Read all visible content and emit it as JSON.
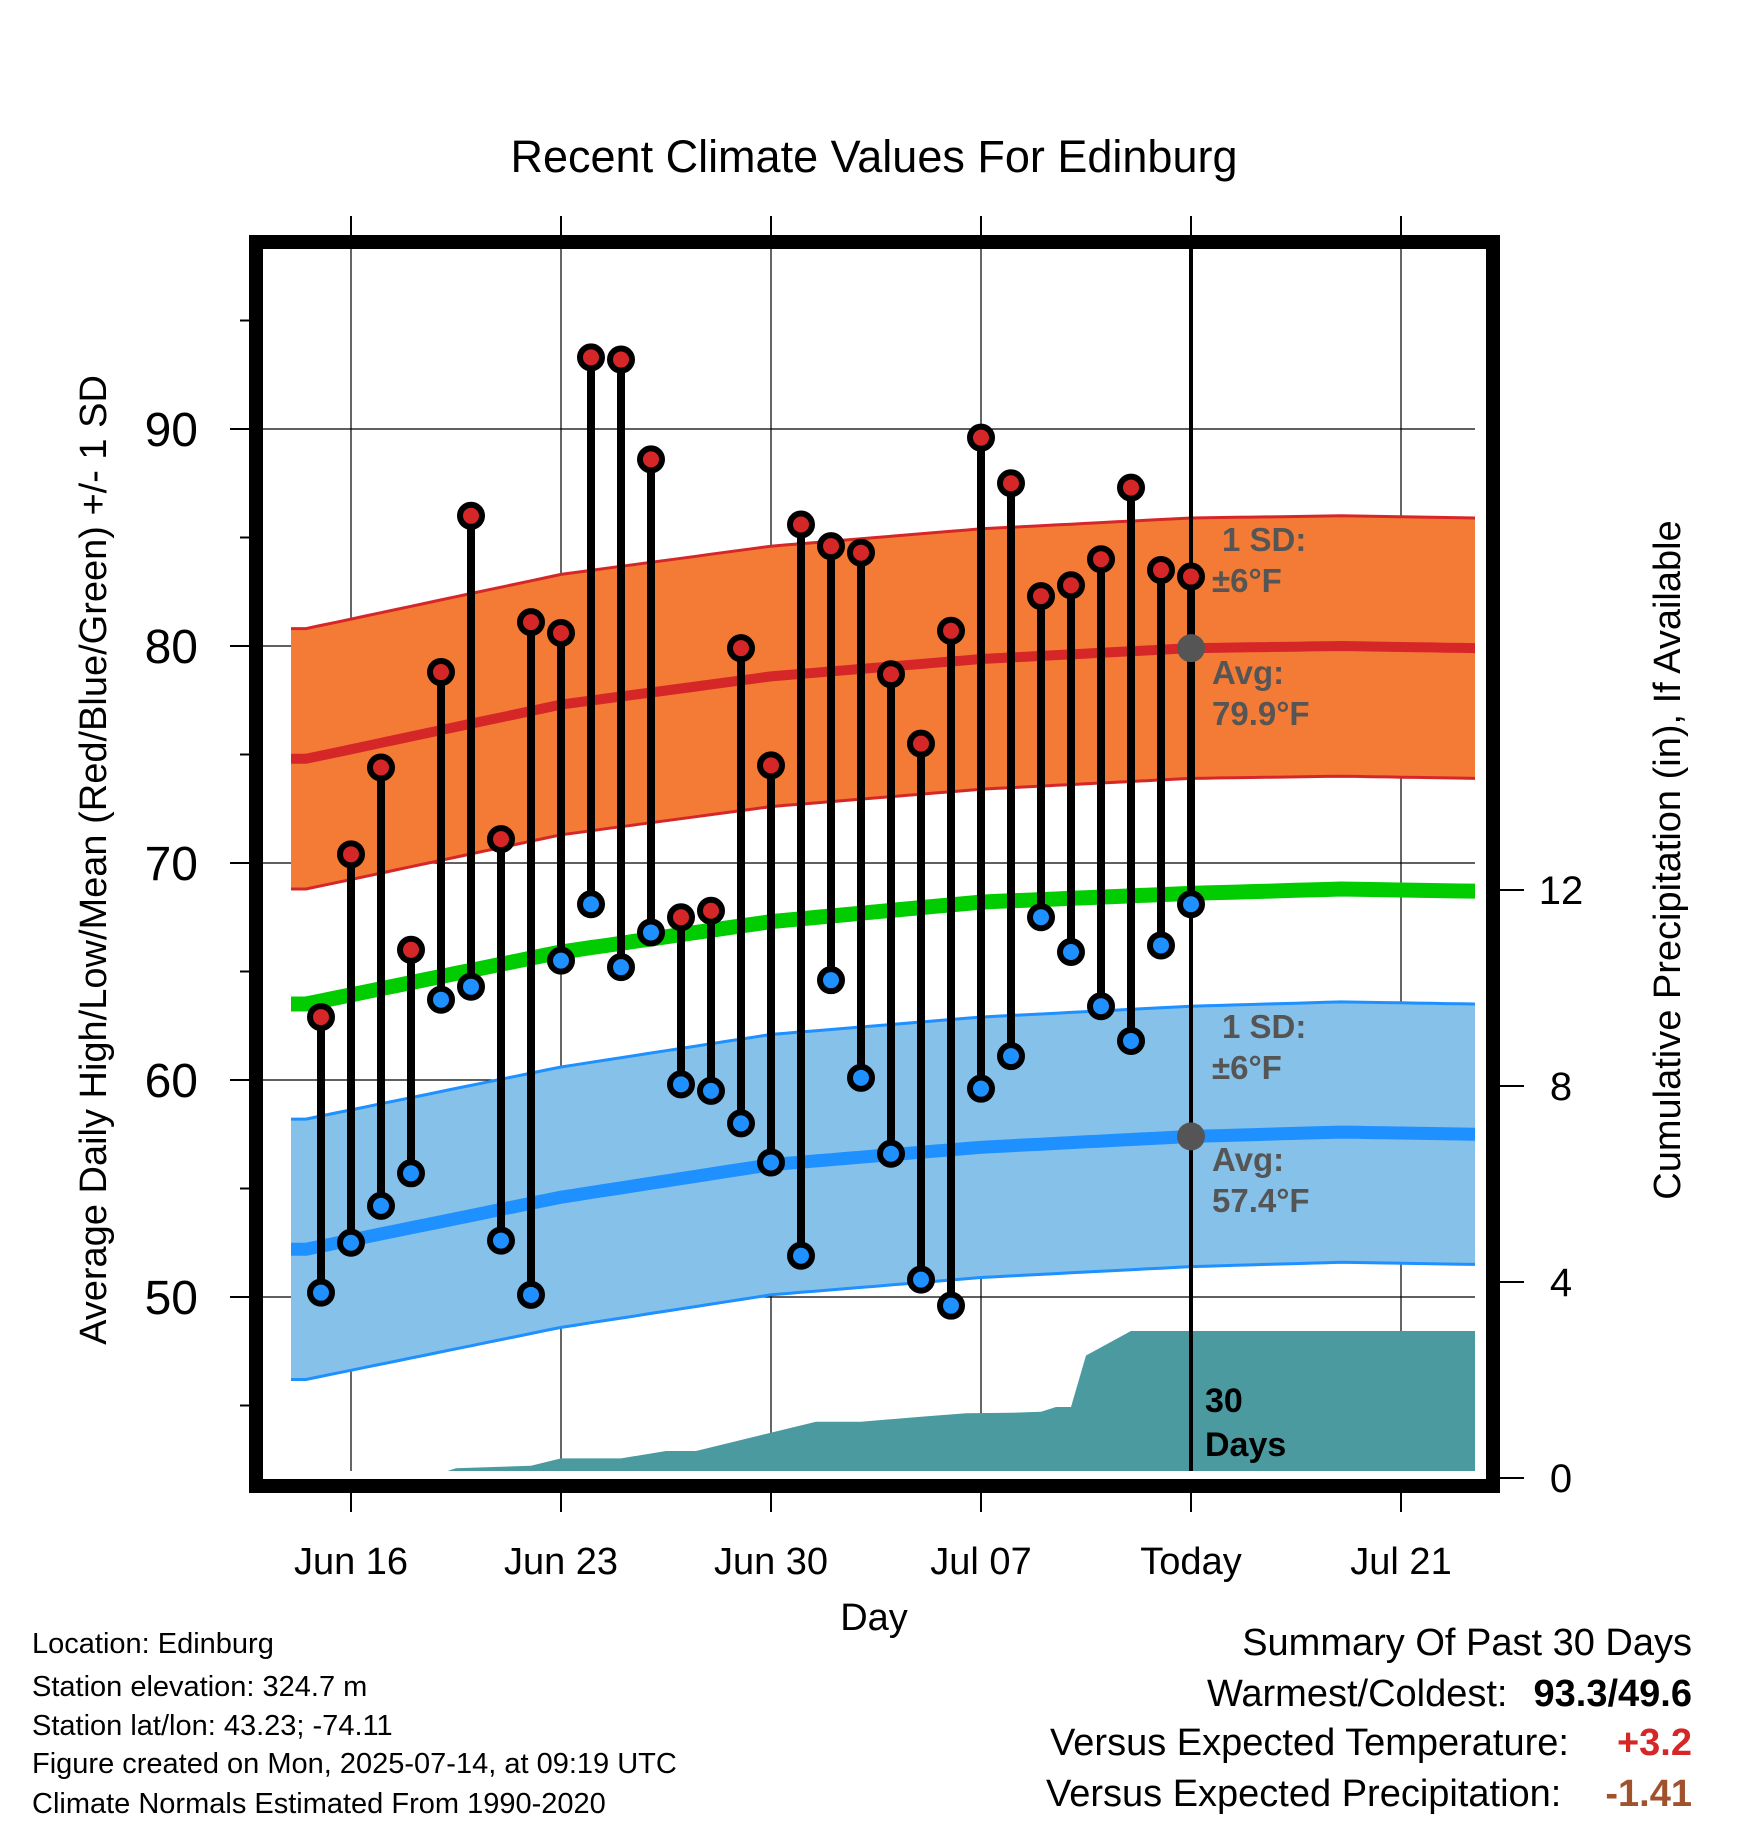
{
  "chart_data": {
    "type": "line",
    "title": "Recent Climate Values For Edinburg",
    "xlabel": "Day",
    "ylabel": "Average Daily High/Low/Mean (Red/Blue/Green) +/- 1 SD",
    "y2label": "Cumulative Precipitation (in), If Available",
    "ylim": [
      39.5,
      99.7
    ],
    "y2lim": [
      0,
      19.4
    ],
    "xlim": [
      -13.5,
      15.25
    ],
    "x_tick_labels": [
      {
        "day": -28,
        "label": "Jun 16"
      },
      {
        "day": -21,
        "label": "Jun 23"
      },
      {
        "day": -14,
        "label": "Jun 30"
      },
      {
        "day": -7,
        "label": "Jul 07"
      },
      {
        "day": 0,
        "label": "Today"
      },
      {
        "day": 7,
        "label": "Jul 21"
      }
    ],
    "x_tick_days": [
      -28,
      -21,
      -14,
      -7,
      0,
      7
    ],
    "y_ticks": [
      50,
      60,
      70,
      80,
      90
    ],
    "y_minor_ticks": [
      45,
      55,
      65,
      75,
      85,
      95
    ],
    "y2_ticks": [
      0,
      4,
      8,
      12
    ],
    "grid": true,
    "today_marker": {
      "day": 0,
      "label": "Today"
    },
    "days": [
      -29,
      -28,
      -27,
      -26,
      -25,
      -24,
      -23,
      -22,
      -21,
      -20,
      -19,
      -18,
      -17,
      -16,
      -15,
      -14,
      -13,
      -12,
      -11,
      -10,
      -9,
      -8,
      -7,
      -6,
      -5,
      -4,
      -3,
      -2,
      -1
    ],
    "x_labels_note": "day offsets relative to Today (Jul 14)",
    "series": [
      {
        "name": "High",
        "color": "#d62728",
        "values": [
          62.9,
          70.4,
          74.4,
          66.0,
          78.8,
          86.0,
          71.1,
          81.1,
          80.6,
          93.3,
          93.2,
          88.6,
          67.5,
          67.8,
          79.9,
          74.5,
          85.6,
          84.6,
          84.3,
          78.7,
          75.5,
          80.7,
          89.6,
          87.5,
          82.3,
          82.8,
          84.0,
          87.3,
          83.5
        ]
      },
      {
        "name": "Low",
        "color": "#1e90ff",
        "values": [
          50.2,
          52.5,
          54.2,
          55.7,
          63.7,
          64.3,
          52.6,
          50.1,
          65.5,
          68.1,
          65.2,
          66.8,
          59.8,
          59.5,
          58.0,
          56.2,
          51.9,
          64.6,
          60.1,
          56.6,
          50.8,
          49.6,
          59.6,
          61.1,
          67.5,
          65.9,
          63.4,
          61.8,
          66.2
        ]
      },
      {
        "name": "Today High",
        "color": "#d62728",
        "days": [
          0
        ],
        "values": [
          83.2
        ]
      },
      {
        "name": "Today Low",
        "color": "#1e90ff",
        "days": [
          0
        ],
        "values": [
          68.1
        ]
      }
    ],
    "normals": {
      "days": [
        -29.5,
        -21,
        -14,
        -7,
        0,
        5,
        9.5
      ],
      "high_avg": [
        74.8,
        77.3,
        78.6,
        79.4,
        79.9,
        80.0,
        79.9
      ],
      "high_sd": 6,
      "low_avg": [
        52.2,
        54.6,
        56.1,
        56.9,
        57.4,
        57.6,
        57.5
      ],
      "low_sd": 6,
      "mean_avg": [
        63.5,
        65.9,
        67.3,
        68.2,
        68.6,
        68.8,
        68.7
      ],
      "today_high_avg": 79.9,
      "today_low_avg": 57.4
    },
    "band_labels": {
      "high_sd": [
        "1 SD:",
        "±6°F"
      ],
      "high_avg": [
        "Avg:",
        "79.9°F"
      ],
      "low_sd": [
        "1 SD:",
        "±6°F"
      ],
      "low_avg": [
        "Avg:",
        "57.4°F"
      ],
      "days_label": [
        "30",
        "Days"
      ]
    },
    "precipitation": {
      "days": [
        -30.5,
        -25.5,
        -24.5,
        -22,
        -21,
        -19,
        -17.5,
        -16.5,
        -12.5,
        -11,
        -10,
        -9,
        -7.5,
        -6,
        -5,
        -4.5,
        -4,
        -3.5,
        -2,
        -1,
        15.25
      ],
      "values": [
        0,
        0,
        0.2,
        0.25,
        0.4,
        0.4,
        0.55,
        0.55,
        1.15,
        1.15,
        1.2,
        1.25,
        1.32,
        1.33,
        1.35,
        1.45,
        1.45,
        2.5,
        3.0,
        3.0,
        3.0
      ],
      "color": "#4a9aa0"
    },
    "colors": {
      "high_band": "#f47b35",
      "high_line": "#d62728",
      "low_band": "#85c1e9",
      "low_line": "#1e90ff",
      "mean_line": "#00cc00",
      "avg_marker": "#555555",
      "sd_text": "#555555"
    }
  },
  "info": {
    "location": "Location: Edinburg",
    "elevation": "Station elevation: 324.7 m",
    "latlon": "Station lat/lon: 43.23; -74.11",
    "created": "Figure created on Mon, 2025-07-14, at 09:19 UTC",
    "normals": "Climate Normals Estimated From 1990-2020"
  },
  "summary": {
    "title": "Summary Of Past 30 Days",
    "warm_cold_label": "Warmest/Coldest:",
    "warm_value": "93.3",
    "cold_value": "49.6",
    "temp_label": "Versus Expected Temperature:",
    "temp_value": "+3.2",
    "temp_color": "#d62728",
    "precip_label": "Versus Expected Precipitation:",
    "precip_value": "-1.41",
    "precip_color": "#a0522d"
  }
}
